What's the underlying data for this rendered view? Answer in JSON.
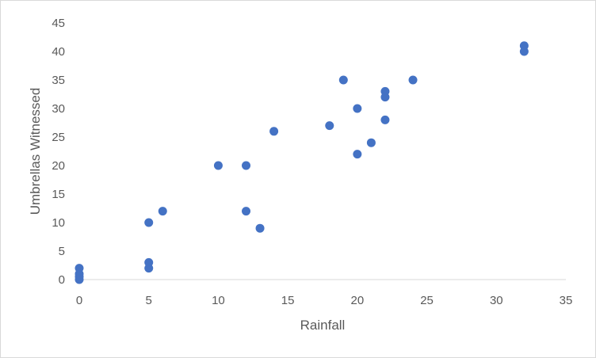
{
  "chart_data": {
    "type": "scatter",
    "title": "",
    "xlabel": "Rainfall",
    "ylabel": "Umbrellas Witnessed",
    "xlim": [
      0,
      35
    ],
    "ylim": [
      0,
      45
    ],
    "xticks": [
      0,
      5,
      10,
      15,
      20,
      25,
      30,
      35
    ],
    "yticks": [
      0,
      5,
      10,
      15,
      20,
      25,
      30,
      35,
      40,
      45
    ],
    "grid": false,
    "legend": "none",
    "marker_color": "#4472c4",
    "series": [
      {
        "points": [
          [
            0,
            0
          ],
          [
            0,
            0.5
          ],
          [
            0,
            1
          ],
          [
            0,
            2
          ],
          [
            5,
            2
          ],
          [
            5,
            3
          ],
          [
            5,
            10
          ],
          [
            6,
            12
          ],
          [
            10,
            20
          ],
          [
            12,
            20
          ],
          [
            12,
            12
          ],
          [
            13,
            9
          ],
          [
            14,
            26
          ],
          [
            18,
            27
          ],
          [
            19,
            35
          ],
          [
            20,
            30
          ],
          [
            20,
            22
          ],
          [
            21,
            24
          ],
          [
            22,
            33
          ],
          [
            22,
            32
          ],
          [
            22,
            28
          ],
          [
            24,
            35
          ],
          [
            32,
            41
          ],
          [
            32,
            40
          ]
        ]
      }
    ]
  }
}
